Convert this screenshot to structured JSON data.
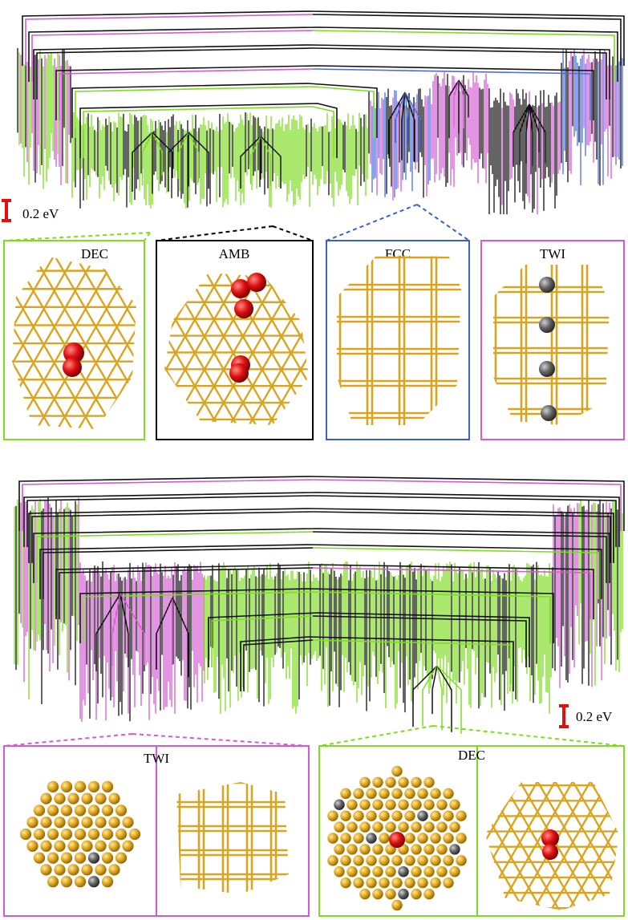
{
  "top_graph": {
    "scale_label": "0.2 eV",
    "panels": [
      {
        "label": "DEC"
      },
      {
        "label": "AMB"
      },
      {
        "label": "FCC"
      },
      {
        "label": "TWI"
      }
    ]
  },
  "bottom_graph": {
    "scale_label": "0.2 eV",
    "panels": [
      {
        "label": "TWI"
      },
      {
        "label": "DEC"
      }
    ]
  }
}
